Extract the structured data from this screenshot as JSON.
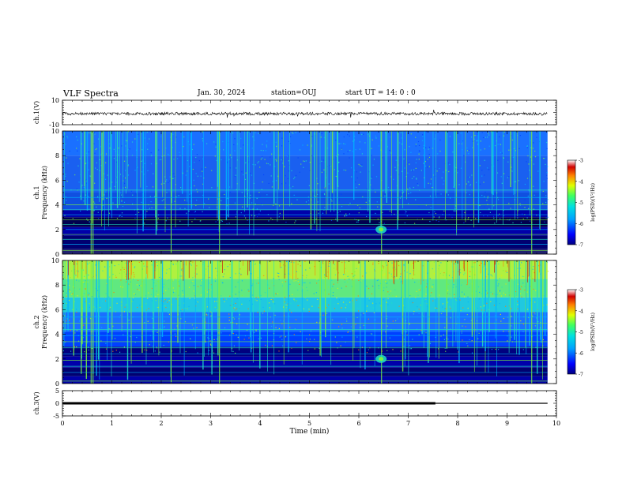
{
  "header": {
    "title": "VLF Spectra",
    "date": "Jan. 30, 2024",
    "station": "station=OUJ",
    "start_ut": "start UT =  14: 0  : 0"
  },
  "chart_data": {
    "type": "heatmap",
    "x_axis": {
      "label": "Time (min)",
      "range": [
        0,
        10
      ],
      "ticks": [
        "0",
        "1",
        "2",
        "3",
        "4",
        "5",
        "6",
        "7",
        "8",
        "9",
        "10"
      ]
    },
    "panels": [
      {
        "name": "ch.1 waveform",
        "ylabel": "ch.1(V)",
        "yrange": [
          -10,
          10
        ],
        "ytick_labels": [
          "10",
          "-10"
        ],
        "trace": {
          "level": -1.0,
          "noise_amplitude": 1.2,
          "data_end_min": 9.82
        }
      },
      {
        "name": "ch.1 spectrogram",
        "ylabel": [
          "ch.1",
          "Frequency (kHz)"
        ],
        "yrange": [
          0,
          10
        ],
        "ytick_labels": [
          "0",
          "2",
          "4",
          "6",
          "8",
          "10"
        ],
        "data_end_min": 9.82,
        "colorbar": {
          "label": "log(PSD)(V²/Hz)",
          "range": [
            -7,
            -3
          ],
          "tick_labels": [
            "-3",
            "-4",
            "-5",
            "-6",
            "-7"
          ]
        }
      },
      {
        "name": "ch.2 spectrogram",
        "ylabel": [
          "ch.2",
          "Frequency (kHz)"
        ],
        "yrange": [
          0,
          10
        ],
        "ytick_labels": [
          "0",
          "2",
          "4",
          "6",
          "8",
          "10"
        ],
        "data_end_min": 9.82,
        "colorbar": {
          "label": "log(PSD)(V²/Hz)",
          "range": [
            -7,
            -3
          ],
          "tick_labels": [
            "-3",
            "-4",
            "-5",
            "-6",
            "-7"
          ]
        }
      },
      {
        "name": "ch.3 waveform",
        "ylabel": "ch.3(V)",
        "yrange": [
          -5,
          5
        ],
        "ytick_labels": [
          "5",
          "0",
          "-5"
        ],
        "trace": {
          "segments": [
            {
              "x": [
                0,
                7.55
              ],
              "y": 0.0,
              "weight": "bold"
            },
            {
              "x": [
                7.55,
                9.82
              ],
              "y": 0.0,
              "weight": "normal"
            }
          ]
        }
      }
    ]
  },
  "colors": {
    "colormap": [
      "#0000aa",
      "#0040ff",
      "#00b4ff",
      "#20e0c0",
      "#7cf040",
      "#e0f000",
      "#ff8000",
      "#cc0000",
      "#ffffff"
    ]
  }
}
